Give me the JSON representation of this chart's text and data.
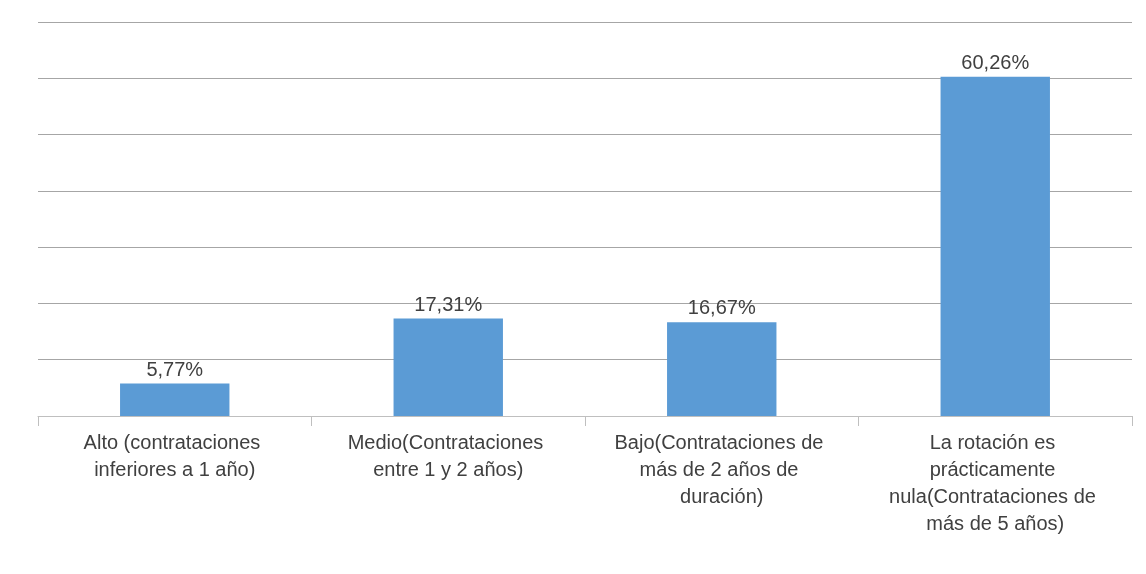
{
  "chart_data": {
    "type": "bar",
    "categories": [
      "Alto (contrataciones inferiores a 1 año)",
      "Medio(Contrataciones entre 1 y 2 años)",
      "Bajo(Contrataciones de más de 2 años de duración)",
      "La rotación es prácticamente nula(Contrataciones de más de 5 años)"
    ],
    "values": [
      5.77,
      17.31,
      16.67,
      60.26
    ],
    "value_labels": [
      "5,77%",
      "17,31%",
      "16,67%",
      "60,26%"
    ],
    "color": "#5b9bd5",
    "ylim": [
      0,
      70
    ],
    "yticks": [
      {
        "value": 0,
        "label": null
      },
      {
        "value": 10,
        "label": null
      },
      {
        "value": 20,
        "label": null
      },
      {
        "value": 30,
        "label": null
      },
      {
        "value": 40,
        "label": null
      },
      {
        "value": 50,
        "label": null
      },
      {
        "value": 60,
        "label": null
      },
      {
        "value": 70,
        "label": null
      }
    ],
    "grid": "y",
    "tick_labels": "x"
  }
}
